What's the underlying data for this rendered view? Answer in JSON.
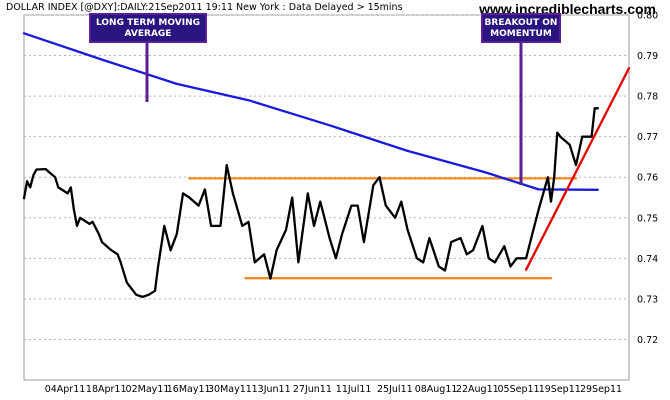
{
  "header": {
    "title": "DOLLAR INDEX [@DXY]:DAILY:21Sep2011 19:11 New York  : Data Delayed > 15mins",
    "watermark": "www.incrediblecharts.com"
  },
  "colors": {
    "price": "#000000",
    "moving_average": "#1a1adc",
    "channel": "#f08c1e",
    "trend": "#e60000",
    "grid": "#b4b4b4",
    "callout_bg": "#2a1480",
    "callout_border": "#5a1e96"
  },
  "annotations": [
    {
      "lines": [
        "LONG TERM MOVING",
        "AVERAGE"
      ]
    },
    {
      "lines": [
        "BREAKOUT ON",
        "MOMENTUM"
      ]
    }
  ],
  "chart_data": {
    "type": "line",
    "title": "DOLLAR INDEX [@DXY]:DAILY:21Sep2011 19:11 New York  : Data Delayed > 15mins",
    "x_tick_labels": [
      "04Apr11",
      "18Apr11",
      "02May11",
      "16May11",
      "30May11",
      "13Jun11",
      "27Jun11",
      "11Jul11",
      "25Jul11",
      "08Aug11",
      "22Aug11",
      "05Sep11",
      "19Sep11",
      "29Sep11"
    ],
    "x_range": [
      "2011-03-21",
      "2011-10-01"
    ],
    "ylim": [
      0.71,
      0.8
    ],
    "y_ticks": [
      0.72,
      0.73,
      0.74,
      0.75,
      0.76,
      0.77,
      0.78,
      0.79,
      0.8
    ],
    "y_tick_labels": [
      "0.72",
      "0.73",
      "0.74",
      "0.75",
      "0.76",
      "0.77",
      "0.78",
      "0.79",
      "0.80"
    ],
    "grid": "horizontal",
    "series": [
      {
        "key": "price",
        "x": [
          "2011-03-21",
          "2011-03-22",
          "2011-03-23",
          "2011-03-24",
          "2011-03-25",
          "2011-03-28",
          "2011-03-29",
          "2011-03-31",
          "2011-04-01",
          "2011-04-04",
          "2011-04-05",
          "2011-04-06",
          "2011-04-07",
          "2011-04-08",
          "2011-04-11",
          "2011-04-12",
          "2011-04-14",
          "2011-04-15",
          "2011-04-18",
          "2011-04-20",
          "2011-04-21",
          "2011-04-23",
          "2011-04-26",
          "2011-04-28",
          "2011-04-30",
          "2011-05-02",
          "2011-05-03",
          "2011-05-05",
          "2011-05-07",
          "2011-05-09",
          "2011-05-11",
          "2011-05-13",
          "2011-05-16",
          "2011-05-18",
          "2011-05-20",
          "2011-05-23",
          "2011-05-25",
          "2011-05-27",
          "2011-05-30",
          "2011-06-01",
          "2011-06-03",
          "2011-06-06",
          "2011-06-08",
          "2011-06-10",
          "2011-06-13",
          "2011-06-15",
          "2011-06-17",
          "2011-06-20",
          "2011-06-22",
          "2011-06-24",
          "2011-06-27",
          "2011-06-29",
          "2011-07-01",
          "2011-07-04",
          "2011-07-06",
          "2011-07-08",
          "2011-07-11",
          "2011-07-13",
          "2011-07-15",
          "2011-07-18",
          "2011-07-20",
          "2011-07-22",
          "2011-07-25",
          "2011-07-27",
          "2011-07-29",
          "2011-08-01",
          "2011-08-03",
          "2011-08-05",
          "2011-08-08",
          "2011-08-10",
          "2011-08-12",
          "2011-08-15",
          "2011-08-17",
          "2011-08-19",
          "2011-08-22",
          "2011-08-24",
          "2011-08-26",
          "2011-08-29",
          "2011-08-31",
          "2011-09-02",
          "2011-09-05",
          "2011-09-06",
          "2011-09-07",
          "2011-09-08",
          "2011-09-09",
          "2011-09-12",
          "2011-09-14",
          "2011-09-16",
          "2011-09-19",
          "2011-09-20",
          "2011-09-21"
        ],
        "values": [
          0.7548,
          0.759,
          0.7575,
          0.7605,
          0.7619,
          0.762,
          0.7613,
          0.76,
          0.7575,
          0.756,
          0.7575,
          0.752,
          0.748,
          0.75,
          0.7485,
          0.749,
          0.746,
          0.744,
          0.742,
          0.741,
          0.739,
          0.734,
          0.731,
          0.7305,
          0.731,
          0.732,
          0.738,
          0.748,
          0.742,
          0.746,
          0.756,
          0.755,
          0.753,
          0.757,
          0.748,
          0.748,
          0.763,
          0.756,
          0.748,
          0.749,
          0.739,
          0.741,
          0.735,
          0.742,
          0.747,
          0.755,
          0.739,
          0.756,
          0.748,
          0.754,
          0.745,
          0.74,
          0.746,
          0.753,
          0.753,
          0.744,
          0.758,
          0.76,
          0.753,
          0.75,
          0.754,
          0.747,
          0.74,
          0.739,
          0.745,
          0.738,
          0.737,
          0.744,
          0.745,
          0.741,
          0.742,
          0.748,
          0.74,
          0.739,
          0.743,
          0.738,
          0.74,
          0.74,
          0.746,
          0.752,
          0.76,
          0.754,
          0.76,
          0.771,
          0.77,
          0.768,
          0.763,
          0.77,
          0.77,
          0.777,
          0.777
        ]
      },
      {
        "key": "moving_average",
        "x": [
          "2011-03-21",
          "2011-04-15",
          "2011-05-09",
          "2011-06-01",
          "2011-06-27",
          "2011-07-22",
          "2011-08-16",
          "2011-09-02",
          "2011-09-21"
        ],
        "values": [
          0.7955,
          0.789,
          0.783,
          0.779,
          0.7728,
          0.7665,
          0.7612,
          0.757,
          0.7569
        ]
      },
      {
        "key": "channel",
        "x": [
          "2011-05-13",
          "2011-09-14"
        ],
        "values": [
          0.7597,
          0.7597
        ]
      },
      {
        "key": "channel",
        "x": [
          "2011-05-31",
          "2011-09-06"
        ],
        "values": [
          0.7351,
          0.7351
        ]
      },
      {
        "key": "trend",
        "x": [
          "2011-08-29",
          "2011-10-01"
        ],
        "values": [
          0.7372,
          0.7869
        ]
      }
    ]
  }
}
